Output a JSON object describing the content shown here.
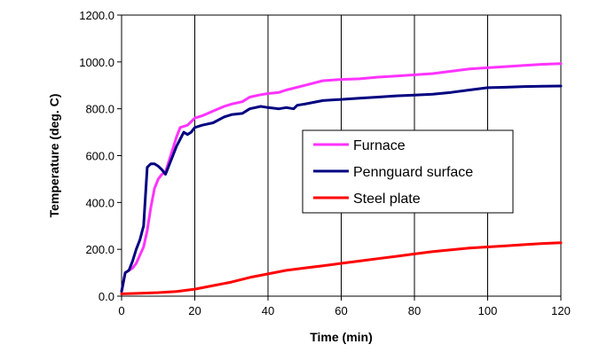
{
  "chart_data": {
    "type": "line",
    "title": "",
    "xlabel": "Time (min)",
    "ylabel": "Temperature (deg. C)",
    "xlim": [
      0,
      120
    ],
    "ylim": [
      0,
      1200
    ],
    "x_ticks": [
      0,
      20,
      40,
      60,
      80,
      100,
      120
    ],
    "x_tick_labels": [
      "0",
      "20",
      "40",
      "60",
      "80",
      "100",
      "120"
    ],
    "y_ticks": [
      0,
      200,
      400,
      600,
      800,
      1000,
      1200
    ],
    "y_tick_labels": [
      "0.0",
      "200.0",
      "400.0",
      "600.0",
      "800.0",
      "1000.0",
      "1200.0"
    ],
    "grid": "vertical",
    "legend_position": "center-right",
    "series": [
      {
        "name": "Furnace",
        "color": "#ff33ff",
        "points": [
          [
            0,
            20
          ],
          [
            1,
            100
          ],
          [
            2,
            110
          ],
          [
            3,
            120
          ],
          [
            4,
            140
          ],
          [
            5,
            175
          ],
          [
            6,
            210
          ],
          [
            7,
            280
          ],
          [
            8,
            380
          ],
          [
            9,
            460
          ],
          [
            10,
            500
          ],
          [
            11,
            520
          ],
          [
            12,
            530
          ],
          [
            13,
            580
          ],
          [
            14,
            630
          ],
          [
            15,
            680
          ],
          [
            16,
            720
          ],
          [
            18,
            730
          ],
          [
            20,
            760
          ],
          [
            22,
            770
          ],
          [
            25,
            790
          ],
          [
            28,
            810
          ],
          [
            30,
            820
          ],
          [
            33,
            830
          ],
          [
            35,
            850
          ],
          [
            38,
            860
          ],
          [
            40,
            865
          ],
          [
            43,
            870
          ],
          [
            45,
            880
          ],
          [
            50,
            900
          ],
          [
            55,
            920
          ],
          [
            60,
            925
          ],
          [
            65,
            928
          ],
          [
            70,
            935
          ],
          [
            75,
            940
          ],
          [
            80,
            945
          ],
          [
            85,
            950
          ],
          [
            90,
            960
          ],
          [
            95,
            970
          ],
          [
            100,
            975
          ],
          [
            105,
            980
          ],
          [
            110,
            985
          ],
          [
            115,
            990
          ],
          [
            120,
            993
          ]
        ]
      },
      {
        "name": "Pennguard surface",
        "color": "#000080",
        "points": [
          [
            0,
            20
          ],
          [
            1,
            100
          ],
          [
            2,
            110
          ],
          [
            3,
            150
          ],
          [
            4,
            200
          ],
          [
            5,
            240
          ],
          [
            6,
            300
          ],
          [
            7,
            550
          ],
          [
            8,
            565
          ],
          [
            9,
            565
          ],
          [
            10,
            555
          ],
          [
            11,
            540
          ],
          [
            12,
            520
          ],
          [
            13,
            560
          ],
          [
            14,
            600
          ],
          [
            15,
            640
          ],
          [
            16,
            670
          ],
          [
            17,
            700
          ],
          [
            18,
            690
          ],
          [
            19,
            700
          ],
          [
            20,
            720
          ],
          [
            22,
            730
          ],
          [
            25,
            740
          ],
          [
            28,
            765
          ],
          [
            30,
            775
          ],
          [
            33,
            780
          ],
          [
            35,
            800
          ],
          [
            38,
            810
          ],
          [
            40,
            805
          ],
          [
            43,
            800
          ],
          [
            45,
            805
          ],
          [
            47,
            800
          ],
          [
            48,
            815
          ],
          [
            50,
            820
          ],
          [
            55,
            835
          ],
          [
            60,
            840
          ],
          [
            65,
            845
          ],
          [
            70,
            850
          ],
          [
            75,
            855
          ],
          [
            80,
            858
          ],
          [
            85,
            862
          ],
          [
            90,
            870
          ],
          [
            95,
            880
          ],
          [
            100,
            890
          ],
          [
            105,
            892
          ],
          [
            110,
            895
          ],
          [
            115,
            896
          ],
          [
            120,
            897
          ]
        ]
      },
      {
        "name": "Steel plate",
        "color": "#ff0000",
        "points": [
          [
            0,
            10
          ],
          [
            5,
            12
          ],
          [
            10,
            15
          ],
          [
            15,
            20
          ],
          [
            20,
            30
          ],
          [
            25,
            45
          ],
          [
            30,
            60
          ],
          [
            35,
            80
          ],
          [
            40,
            95
          ],
          [
            45,
            110
          ],
          [
            50,
            120
          ],
          [
            55,
            130
          ],
          [
            60,
            140
          ],
          [
            65,
            150
          ],
          [
            70,
            160
          ],
          [
            75,
            170
          ],
          [
            80,
            180
          ],
          [
            85,
            190
          ],
          [
            90,
            198
          ],
          [
            95,
            205
          ],
          [
            100,
            210
          ],
          [
            105,
            215
          ],
          [
            110,
            220
          ],
          [
            115,
            225
          ],
          [
            120,
            228
          ]
        ]
      }
    ]
  }
}
